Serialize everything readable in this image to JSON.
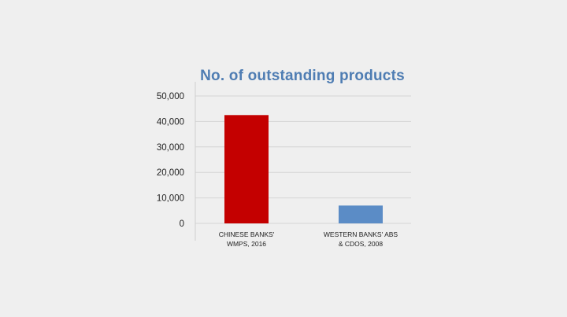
{
  "chart_data": {
    "type": "bar",
    "title": "No. of outstanding products",
    "categories": [
      [
        "CHINESE BANKS'",
        "WMPS, 2016"
      ],
      [
        "WESTERN BANKS' ABS",
        "& CDOS, 2008"
      ]
    ],
    "values": [
      42500,
      7000
    ],
    "bar_colors": [
      "#c40000",
      "#5b8cc6"
    ],
    "yticks": [
      "0",
      "10,000",
      "20,000",
      "30,000",
      "40,000",
      "50,000"
    ],
    "ytick_values": [
      0,
      10000,
      20000,
      30000,
      40000,
      50000
    ],
    "ylim": [
      0,
      50000
    ],
    "grid": true,
    "xlabel": "",
    "ylabel": ""
  },
  "colors": {
    "title": "#4f7db3",
    "grid": "#d4d4d4",
    "axis": "#cfcfcf",
    "background": "#efefef"
  }
}
